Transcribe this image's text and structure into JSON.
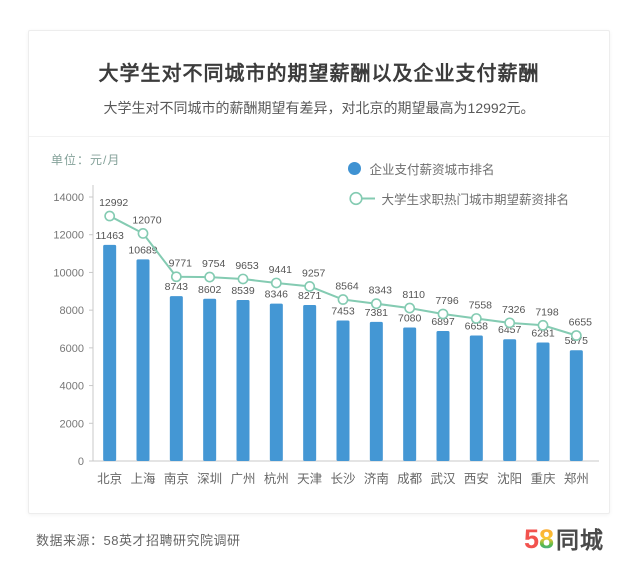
{
  "header": {
    "title": "大学生对不同城市的期望薪酬以及企业支付薪酬",
    "subtitle": "大学生对不同城市的薪酬期望有差异，对北京的期望最高为12992元。"
  },
  "chart": {
    "unit_label": "单位：元/月"
  },
  "legend": {
    "bar_series_label": "企业支付薪资城市排名",
    "line_series_label": "大学生求职热门城市期望薪资排名"
  },
  "chart_data": {
    "type": "bar",
    "title": "大学生对不同城市的期望薪酬以及企业支付薪酬",
    "subtitle": "大学生对不同城市的薪酬期望有差异，对北京的期望最高为12992元。",
    "unit": "元/月",
    "categories": [
      "北京",
      "上海",
      "南京",
      "深圳",
      "广州",
      "杭州",
      "天津",
      "长沙",
      "济南",
      "成都",
      "武汉",
      "西安",
      "沈阳",
      "重庆",
      "郑州"
    ],
    "series": [
      {
        "name": "企业支付薪资城市排名",
        "type": "bar",
        "color": "#4497d4",
        "values": [
          11463,
          10689,
          8743,
          8602,
          8539,
          8346,
          8271,
          7453,
          7381,
          7080,
          6897,
          6658,
          6457,
          6281,
          5875
        ]
      },
      {
        "name": "大学生求职热门城市期望薪资排名",
        "type": "line",
        "color": "#84cbb2",
        "values": [
          12992,
          12070,
          9771,
          9754,
          9653,
          9441,
          9257,
          8564,
          8343,
          8110,
          7796,
          7558,
          7326,
          7198,
          6655
        ]
      }
    ],
    "ylim": [
      0,
      14000
    ],
    "yticks": [
      0,
      2000,
      4000,
      6000,
      8000,
      10000,
      12000,
      14000
    ],
    "grid": false,
    "legend_position": "top-right",
    "data_labels": true
  },
  "footer": {
    "source": "数据来源：58英才招聘研究院调研",
    "logo": {
      "part1": "5",
      "part2": "8",
      "part3": "同城"
    }
  },
  "colors": {
    "bar": "#4497d4",
    "line": "#84cbb2",
    "axis": "#c9c9c9",
    "value_label": "#555555",
    "tick_label": "#777777",
    "logo_red": "#f2524e"
  }
}
